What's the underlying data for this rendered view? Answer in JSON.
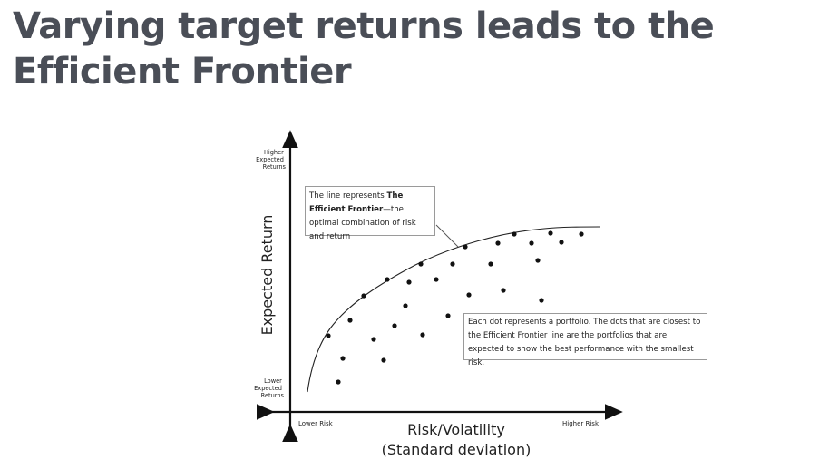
{
  "slide": {
    "title": "Varying target returns leads to the Efficient Frontier"
  },
  "diagram": {
    "y_axis": {
      "label": "Expected Return",
      "top_label": [
        "Higher",
        "Expected",
        "Returns"
      ],
      "bottom_label": [
        "Lower",
        "Expected",
        "Returns"
      ]
    },
    "x_axis": {
      "label_line1": "Risk/Volatility",
      "label_line2": "(Standard deviation)",
      "left_label": "Lower Risk",
      "right_label": "Higher Risk"
    },
    "frontier_callout": {
      "text_before": "The line represents ",
      "text_bold": "The Efficient Frontier",
      "text_after": "—the optimal combination of risk and return"
    },
    "dots_callout": {
      "text": "Each dot represents a portfolio. The dots that are closest to the Efficient Frontier line are the portfolios that are expected to show the best performance with the smallest risk."
    },
    "colors": {
      "title": "#4a4e57",
      "ink": "#111111",
      "callout_border": "#9a9a9a"
    }
  }
}
